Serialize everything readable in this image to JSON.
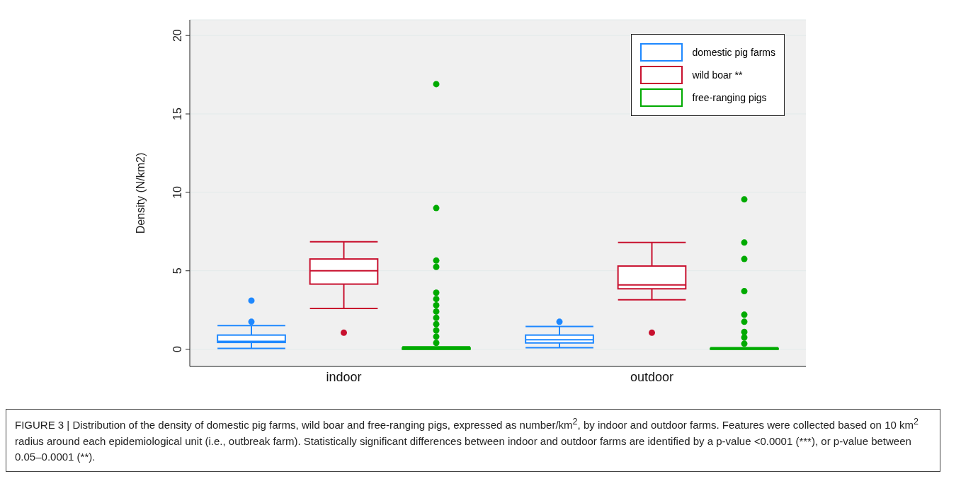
{
  "chart_data": {
    "type": "box",
    "categories": [
      "indoor",
      "outdoor"
    ],
    "ylabel": "Density (N/km2)",
    "ylim": [
      -1.1,
      21
    ],
    "yticks": [
      0,
      5,
      10,
      15,
      20
    ],
    "grid": "y",
    "legend": "top right",
    "series": [
      {
        "name": "domestic pig farms",
        "color": "#1e88ff",
        "boxes": [
          {
            "low": 0.05,
            "q1": 0.43,
            "median": 0.5,
            "q3": 0.9,
            "high": 1.5,
            "outliers": [
              1.75,
              3.1
            ]
          },
          {
            "low": 0.1,
            "q1": 0.4,
            "median": 0.6,
            "q3": 0.9,
            "high": 1.45,
            "outliers": [
              1.75
            ]
          }
        ]
      },
      {
        "name": "wild boar **",
        "color": "#c8102e",
        "boxes": [
          {
            "low": 2.6,
            "q1": 4.15,
            "median": 5.0,
            "q3": 5.75,
            "high": 6.85,
            "outliers": [
              1.05
            ]
          },
          {
            "low": 3.15,
            "q1": 3.85,
            "median": 4.1,
            "q3": 5.3,
            "high": 6.8,
            "outliers": [
              1.05
            ]
          }
        ]
      },
      {
        "name": "free-ranging pigs",
        "color": "#00aa00",
        "boxes": [
          {
            "low": 0,
            "q1": 0,
            "median": 0.02,
            "q3": 0.08,
            "high": 0.15,
            "outliers": [
              0.4,
              0.8,
              1.2,
              1.6,
              2.0,
              2.4,
              2.8,
              3.2,
              3.6,
              5.25,
              5.65,
              9.0,
              16.9
            ]
          },
          {
            "low": 0,
            "q1": 0,
            "median": 0.02,
            "q3": 0.05,
            "high": 0.1,
            "outliers": [
              0.35,
              0.75,
              1.1,
              1.75,
              2.2,
              3.7,
              5.75,
              6.8,
              9.55
            ]
          }
        ]
      }
    ],
    "annotations": [
      "FIGURE 3 | Distribution of the density of domestic pig farms, wild boar and free-ranging pigs, expressed as number/km$^{2}$, by indoor and outdoor farms. Features were collected based on 10 km$^{2}$ radius around each epidemiological unit (i.e., outbreak farm). Statistically significant differences between indoor and outdoor farms are identified by a p-value <0.0001 (***),",
      "or p-value between 0.05–0.0001 (**)."
    ]
  }
}
